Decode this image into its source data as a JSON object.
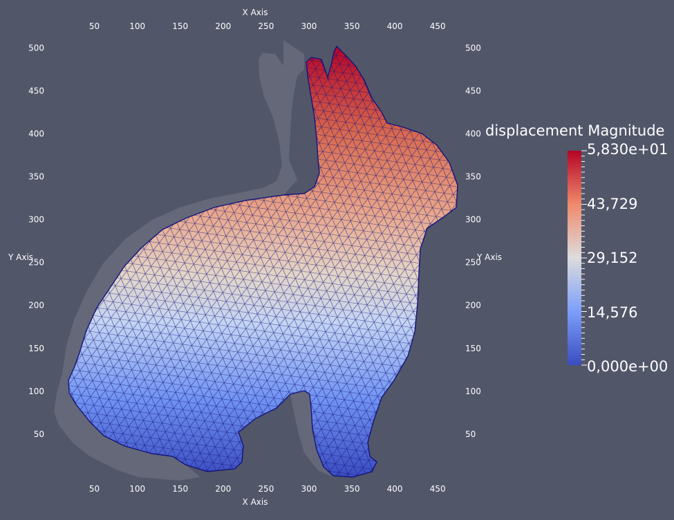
{
  "axes": {
    "x_title": "X Axis",
    "y_title": "Y Axis",
    "x_ticks": [
      50,
      100,
      150,
      200,
      250,
      300,
      350,
      400,
      450
    ],
    "y_ticks": [
      50,
      100,
      150,
      200,
      250,
      300,
      350,
      400,
      450,
      500
    ],
    "x_range": [
      0,
      475
    ],
    "y_range": [
      0,
      510
    ]
  },
  "colorbar": {
    "title": "displacement Magnitude",
    "labels": [
      "5,830e+01",
      "43,729",
      "29,152",
      "14,576",
      "0,000e+00"
    ],
    "colors": {
      "max": "#b40426",
      "upper": "#e8795e",
      "mid": "#dcdcdd",
      "lower": "#6f92f3",
      "min": "#3b4cc0"
    }
  },
  "colors": {
    "background": "#525669",
    "shadow": "#646879",
    "mesh_edges": "#14147a",
    "text": "#ffffff"
  }
}
